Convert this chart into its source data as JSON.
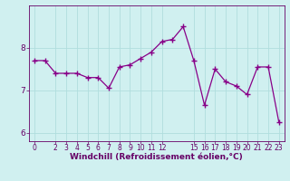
{
  "x": [
    0,
    1,
    2,
    3,
    4,
    5,
    6,
    7,
    8,
    9,
    10,
    11,
    12,
    13,
    14,
    15,
    16,
    17,
    18,
    19,
    20,
    21,
    22,
    23
  ],
  "y": [
    7.7,
    7.7,
    7.4,
    7.4,
    7.4,
    7.3,
    7.3,
    7.05,
    7.55,
    7.6,
    7.75,
    7.9,
    8.15,
    8.2,
    8.5,
    7.7,
    6.65,
    7.5,
    7.2,
    7.1,
    6.9,
    7.55,
    7.55,
    6.25
  ],
  "line_color": "#880088",
  "marker": "+",
  "marker_size": 4,
  "bg_color": "#d0f0f0",
  "grid_color": "#b0dede",
  "axis_color": "#660066",
  "xlabel": "Windchill (Refroidissement éolien,°C)",
  "ylim": [
    5.8,
    9.0
  ],
  "xlim": [
    -0.5,
    23.5
  ],
  "yticks": [
    6,
    7,
    8
  ],
  "xticks": [
    0,
    2,
    3,
    4,
    5,
    6,
    7,
    8,
    9,
    10,
    11,
    12,
    15,
    16,
    17,
    18,
    19,
    20,
    21,
    22,
    23
  ]
}
